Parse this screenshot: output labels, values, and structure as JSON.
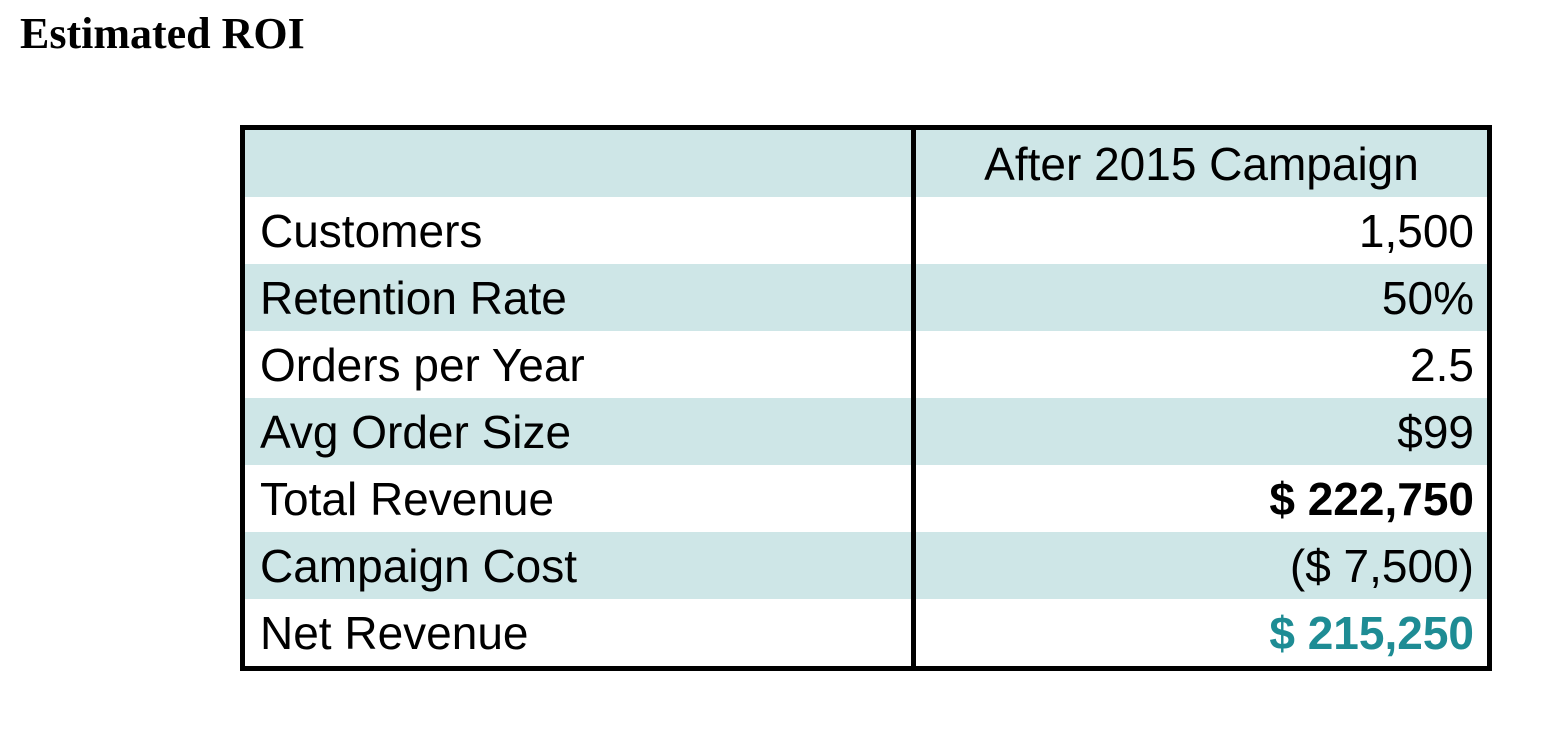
{
  "page": {
    "title": "Estimated ROI"
  },
  "colors": {
    "row_alt_background": "#cee6e7",
    "accent_text": "#1e8c94",
    "border": "#000000"
  },
  "table": {
    "header": {
      "label": "",
      "value": "After 2015 Campaign"
    },
    "rows": [
      {
        "label": "Customers",
        "value": "1,500",
        "bold": false,
        "accent": false
      },
      {
        "label": "Retention Rate",
        "value": "50%",
        "bold": false,
        "accent": false
      },
      {
        "label": "Orders per Year",
        "value": "2.5",
        "bold": false,
        "accent": false
      },
      {
        "label": "Avg Order Size",
        "value": "$99",
        "bold": false,
        "accent": false
      },
      {
        "label": "Total Revenue",
        "value": "$ 222,750",
        "bold": true,
        "accent": false
      },
      {
        "label": "Campaign Cost",
        "value": "($ 7,500)",
        "bold": false,
        "accent": false
      },
      {
        "label": "Net Revenue",
        "value": "$ 215,250",
        "bold": true,
        "accent": true
      }
    ]
  }
}
